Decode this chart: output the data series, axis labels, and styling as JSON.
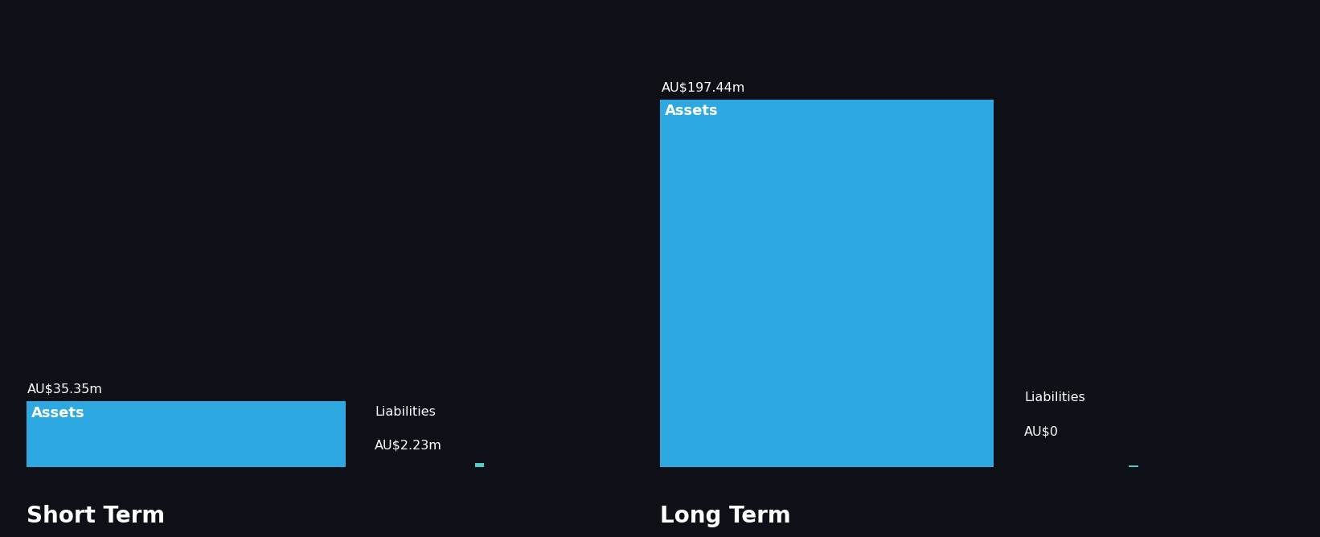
{
  "background_color": "#0d1117",
  "asset_color": "#2da8e0",
  "liability_color": "#4ecdc4",
  "text_color": "#ffffff",
  "short_term": {
    "assets": 35.35,
    "liabilities": 2.23,
    "label": "Short Term",
    "asset_label": "AU$35.35m",
    "liability_label": "AU$2.23m",
    "asset_text": "Assets",
    "liability_text": "Liabilities"
  },
  "long_term": {
    "assets": 197.44,
    "liabilities": 0,
    "label": "Long Term",
    "asset_label": "AU$197.44m",
    "liability_label": "AU$0",
    "asset_text": "Assets",
    "liability_text": "Liabilities"
  },
  "max_value": 197.44,
  "figsize": [
    16.42,
    6.68
  ],
  "dpi": 100
}
